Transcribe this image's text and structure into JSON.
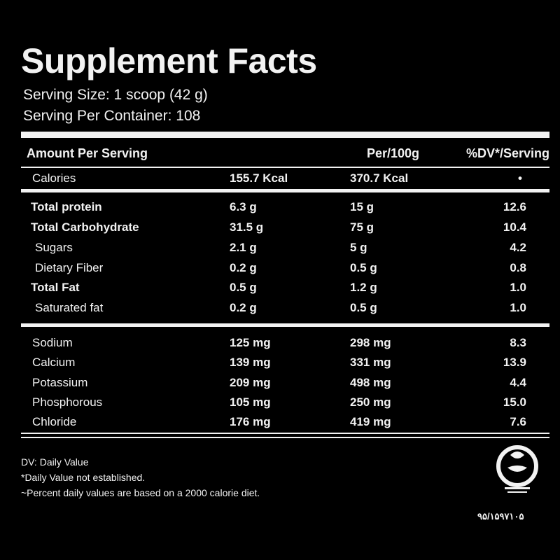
{
  "title": "Supplement Facts",
  "serving_size": "Serving Size: 1 scoop (42 g)",
  "servings_per_container": "Serving Per Container: 108",
  "header": {
    "amount": "Amount Per Serving",
    "per100": "Per/100g",
    "dv": "%DV*/Serving"
  },
  "calories": {
    "name": "Calories",
    "serving": "155.7 Kcal",
    "per100": "370.7 Kcal",
    "dv": "•"
  },
  "macros": [
    {
      "name": "Total protein",
      "serving": "6.3 g",
      "per100": "15 g",
      "dv": "12.6",
      "style": "bold"
    },
    {
      "name": "Total Carbohydrate",
      "serving": "31.5 g",
      "per100": "75 g",
      "dv": "10.4",
      "style": "bold"
    },
    {
      "name": "Sugars",
      "serving": "2.1 g",
      "per100": "5 g",
      "dv": "4.2",
      "style": "sub"
    },
    {
      "name": "Dietary Fiber",
      "serving": "0.2 g",
      "per100": "0.5 g",
      "dv": "0.8",
      "style": "sub"
    },
    {
      "name": "Total Fat",
      "serving": "0.5 g",
      "per100": "1.2 g",
      "dv": "1.0",
      "style": "bold"
    },
    {
      "name": "Saturated fat",
      "serving": "0.2 g",
      "per100": "0.5 g",
      "dv": "1.0",
      "style": "sub"
    }
  ],
  "minerals": [
    {
      "name": "Sodium",
      "serving": "125 mg",
      "per100": "298 mg",
      "dv": "8.3"
    },
    {
      "name": "Calcium",
      "serving": "139 mg",
      "per100": "331 mg",
      "dv": "13.9"
    },
    {
      "name": "Potassium",
      "serving": "209 mg",
      "per100": "498 mg",
      "dv": "4.4"
    },
    {
      "name": "Phosphorous",
      "serving": "105 mg",
      "per100": "250 mg",
      "dv": "15.0"
    },
    {
      "name": "Chloride",
      "serving": "176 mg",
      "per100": "419 mg",
      "dv": "7.6"
    }
  ],
  "footnotes": [
    "DV: Daily Value",
    "*Daily Value not established.",
    "~Percent daily values are based on a 2000 calorie diet."
  ],
  "seal_code": "۹۵/۱۵۹۷۱۰۵"
}
